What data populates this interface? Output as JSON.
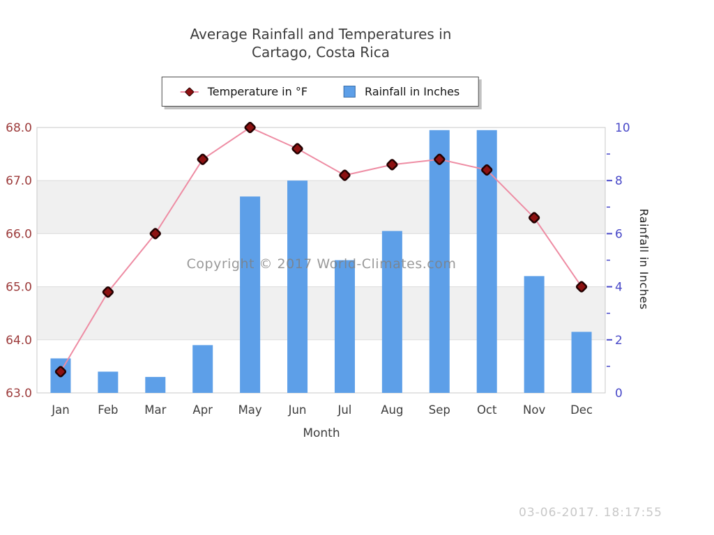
{
  "title": {
    "line1": "Average Rainfall and Temperatures in",
    "line2": "Cartago, Costa Rica"
  },
  "legend": {
    "temperature_label": "Temperature in °F",
    "rainfall_label": "Rainfall in Inches"
  },
  "watermark": "Copyright © 2017 World-Climates.com",
  "timestamp": "03-06-2017. 18:17:55",
  "chart_data": {
    "type": "bar+line",
    "title": "Average Rainfall and Temperatures in Cartago, Costa Rica",
    "xlabel": "Month",
    "categories": [
      "Jan",
      "Feb",
      "Mar",
      "Apr",
      "May",
      "Jun",
      "Jul",
      "Aug",
      "Sep",
      "Oct",
      "Nov",
      "Dec"
    ],
    "series": [
      {
        "name": "Temperature in °F",
        "type": "line",
        "axis": "left",
        "color": "#ee8ca3",
        "marker": "diamond",
        "marker_fill": "#8c1111",
        "marker_stroke": "#220000",
        "values": [
          63.4,
          64.9,
          66.0,
          67.4,
          68.0,
          67.6,
          67.1,
          67.3,
          67.4,
          67.2,
          66.3,
          65.0
        ]
      },
      {
        "name": "Rainfall in Inches",
        "type": "bar",
        "axis": "right",
        "color": "#5d9fe8",
        "values": [
          1.3,
          0.8,
          0.6,
          1.8,
          7.4,
          8.0,
          5.0,
          6.1,
          9.9,
          9.9,
          4.4,
          2.3
        ]
      }
    ],
    "left_axis": {
      "min": 63,
      "max": 68,
      "color": "#9c3a3a",
      "ticks": [
        {
          "label": "68.0",
          "value": 68
        },
        {
          "label": "67.0",
          "value": 67
        },
        {
          "label": "66.0",
          "value": 66
        },
        {
          "label": "65.0",
          "value": 65
        },
        {
          "label": "64.0",
          "value": 64
        },
        {
          "label": "63.0",
          "value": 63
        }
      ]
    },
    "right_axis": {
      "min": 0,
      "max": 10,
      "color": "#4848c8",
      "label": "Rainfall in Inches",
      "ticks": [
        {
          "label": "10",
          "value": 10
        },
        {
          "label": "8",
          "value": 8
        },
        {
          "label": "6",
          "value": 6
        },
        {
          "label": "4",
          "value": 4
        },
        {
          "label": "2",
          "value": 2
        },
        {
          "label": "0",
          "value": 0
        }
      ],
      "major_tick_marks": [
        8,
        6,
        4,
        2
      ],
      "minor_tick_marks": [
        9,
        7,
        5,
        3,
        1
      ]
    },
    "gridlines": [
      67,
      66,
      65,
      64
    ],
    "bands": [
      [
        66,
        67
      ],
      [
        64,
        65
      ]
    ],
    "band_color": "#f0f0f0",
    "grid_color": "#dcdcdc",
    "border_color": "#c9c9c9",
    "x_tick_color": "#3c3c3c",
    "legend_position": "top",
    "grid": true
  }
}
